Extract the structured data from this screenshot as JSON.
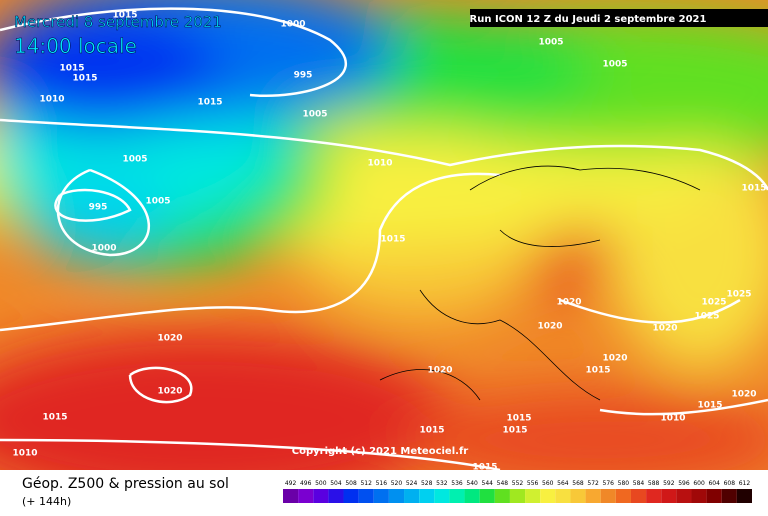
{
  "header": {
    "date": "Mercredi 8 septembre 2021",
    "time": "14:00 locale",
    "run": "Run ICON 12 Z du Jeudi 2 septembre 2021",
    "copyright": "Copyright (c) 2021 Meteociel.fr"
  },
  "footer": {
    "title": "Géop. Z500 & pression au sol",
    "lead": "(+ 144h)"
  },
  "isobar_labels": [
    "1015",
    "1000",
    "995",
    "1015",
    "1015",
    "1010",
    "1015",
    "1005",
    "1005",
    "1005",
    "995",
    "1000",
    "1010",
    "1015",
    "1005",
    "1005",
    "1015",
    "1020",
    "1020",
    "1025",
    "1025",
    "1025",
    "1020",
    "1020",
    "1020",
    "1015",
    "1020",
    "1020",
    "1015",
    "1010",
    "1015",
    "1020",
    "1015",
    "1015",
    "1015",
    "1015",
    "1010"
  ],
  "legend": {
    "values": [
      492,
      496,
      500,
      504,
      508,
      512,
      516,
      520,
      524,
      528,
      532,
      536,
      540,
      544,
      548,
      552,
      556,
      560,
      564,
      568,
      572,
      576,
      580,
      584,
      588,
      592,
      596,
      600,
      604,
      608,
      612
    ],
    "colors": [
      "#6a00a8",
      "#7a00d0",
      "#5a00e0",
      "#2a10e8",
      "#0030f0",
      "#0050f0",
      "#0070f0",
      "#0090f0",
      "#00b0f0",
      "#00d0f0",
      "#00e8e0",
      "#00f0b0",
      "#00e880",
      "#20e040",
      "#60e020",
      "#a0e820",
      "#d0f030",
      "#f8f040",
      "#f8e040",
      "#f8c838",
      "#f8a830",
      "#f08828",
      "#f06820",
      "#e84820",
      "#e02820",
      "#d01818",
      "#b81010",
      "#a00808",
      "#800000",
      "#500000",
      "#200000"
    ]
  }
}
